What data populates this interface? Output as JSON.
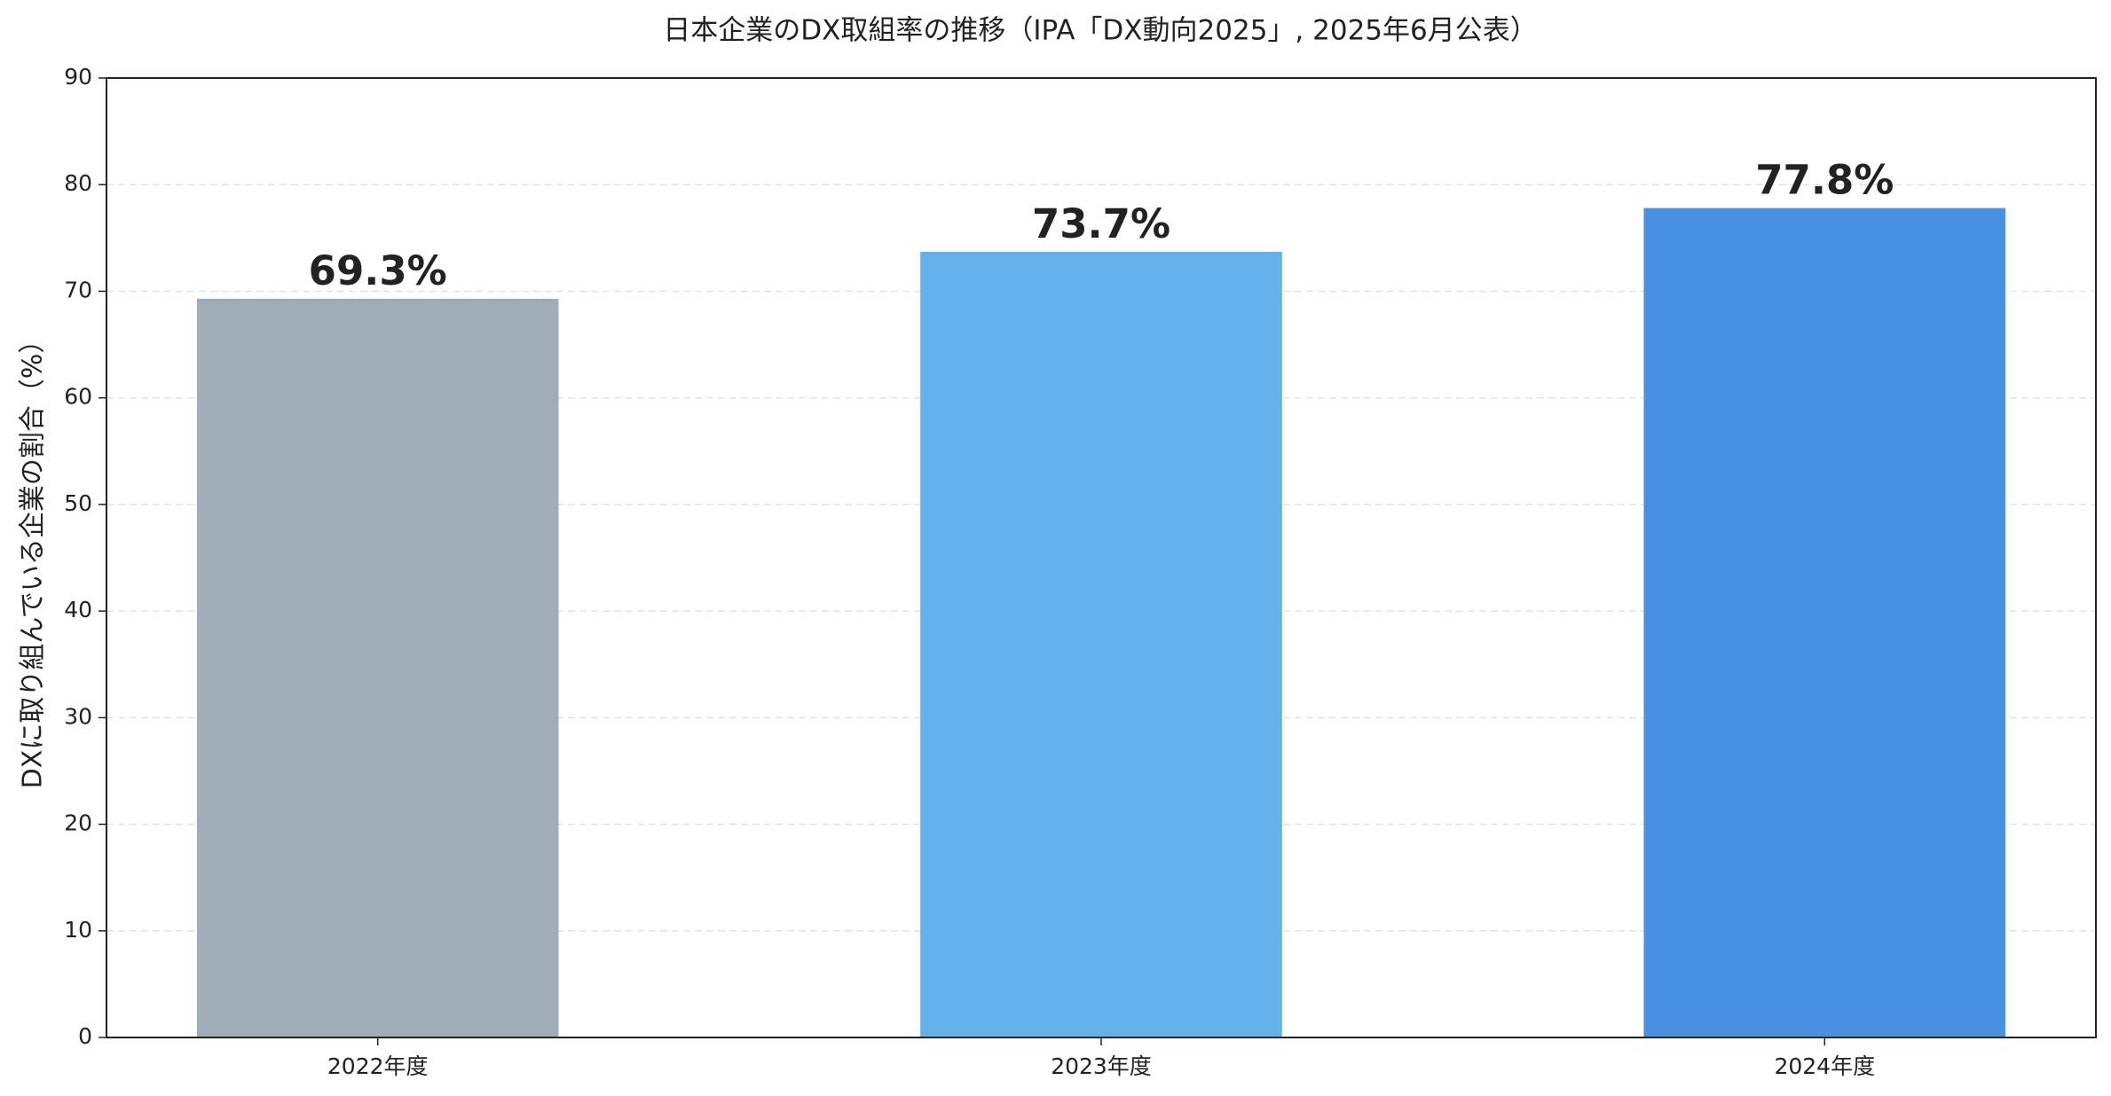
{
  "chart_data": {
    "type": "bar",
    "title": "日本企業のDX取組率の推移（IPA「DX動向2025」, 2025年6月公表）",
    "y_label": "DXに取り組んでいる企業の割合（%）",
    "categories": [
      "2022年度",
      "2023年度",
      "2024年度"
    ],
    "values": [
      69.3,
      73.7,
      77.8
    ],
    "value_labels": [
      "69.3%",
      "73.7%",
      "77.8%"
    ],
    "colors": [
      "#a0adb9",
      "#63b0ea",
      "#4a90e0"
    ],
    "ylim": [
      0,
      90
    ],
    "yticks": [
      0,
      10,
      20,
      30,
      40,
      50,
      60,
      70,
      80,
      90
    ],
    "grid": true
  }
}
